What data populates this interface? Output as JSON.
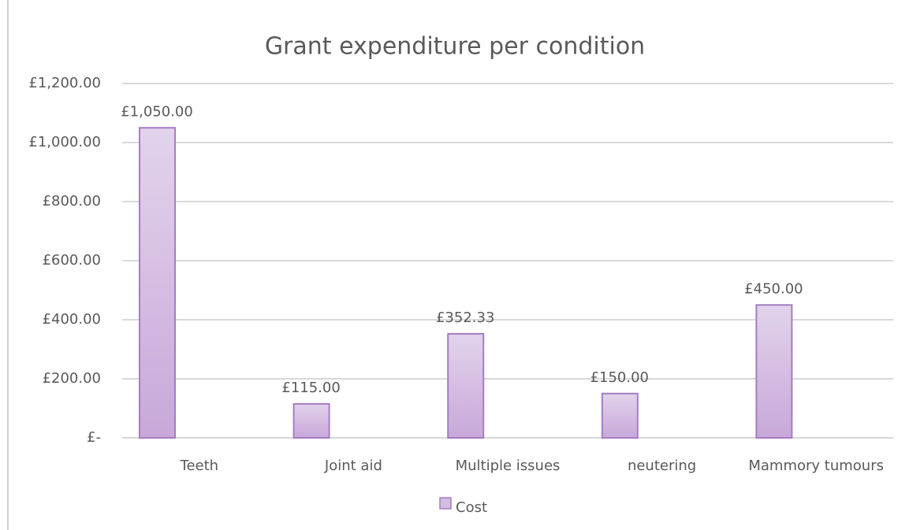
{
  "chart_data": {
    "type": "bar",
    "title": "Grant expenditure per condition",
    "categories": [
      "Teeth",
      "Joint aid",
      "Multiple issues",
      "neutering",
      "Mammory tumours"
    ],
    "series": [
      {
        "name": "Cost",
        "color": "#d4bce2",
        "values": [
          1050,
          115,
          352.33,
          150,
          450
        ],
        "value_labels": [
          "£1,050.00",
          "£115.00",
          "£352.33",
          "£150.00",
          "£450.00"
        ]
      }
    ],
    "ylim": [
      0,
      1200
    ],
    "yticks": [
      {
        "value": 0,
        "label": "£-"
      },
      {
        "value": 200,
        "label": "£200.00"
      },
      {
        "value": 400,
        "label": "£400.00"
      },
      {
        "value": 600,
        "label": "£600.00"
      },
      {
        "value": 800,
        "label": "£800.00"
      },
      {
        "value": 1000,
        "label": "£1,000.00"
      },
      {
        "value": 1200,
        "label": "£1,200.00"
      }
    ],
    "grid": true,
    "legend": "bottom"
  }
}
